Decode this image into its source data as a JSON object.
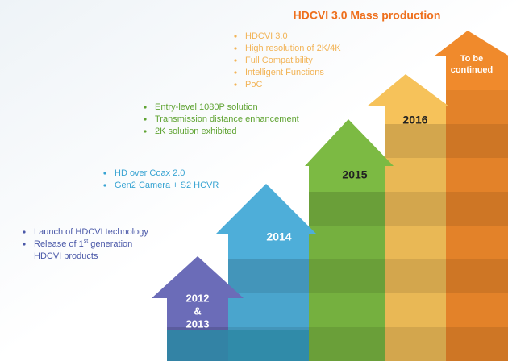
{
  "title": "HDCVI 3.0 Mass production",
  "steps": [
    {
      "label_lines": [
        "2012",
        "&",
        "2013"
      ],
      "color": "#6b6cb8",
      "text_color": "#4a58a8",
      "bullets": [
        [
          "Launch of HDCVI technology"
        ],
        [
          "Release of 1",
          "st",
          " generation"
        ]
      ],
      "continuation": "HDCVI products"
    },
    {
      "label_lines": [
        "2014"
      ],
      "color": "#4eaed9",
      "text_color": "#37a3d2",
      "bullets": [
        [
          "HD over Coax 2.0"
        ],
        [
          "Gen2 Camera + S2 HCVR"
        ]
      ]
    },
    {
      "label_lines": [
        "2015"
      ],
      "color": "#7cba43",
      "text_color": "#5fa332",
      "bullets": [
        [
          "Entry-level 1080P solution"
        ],
        [
          "Transmission distance enhancement"
        ],
        [
          "2K solution exhibited"
        ]
      ]
    },
    {
      "label_lines": [
        "2016"
      ],
      "color": "#f6c25a",
      "text_color": "#f2b457",
      "bullets": [
        [
          "HDCVI 3.0"
        ],
        [
          "High resolution of 2K/4K"
        ],
        [
          "Full Compatibility"
        ],
        [
          "Intelligent Functions"
        ],
        [
          "PoC"
        ]
      ]
    },
    {
      "label_lines": [
        "To be",
        "continued"
      ],
      "color": "#f08a2c",
      "text_color": "#ffffff",
      "bullets": []
    }
  ],
  "title_color": "#ee6f1c"
}
